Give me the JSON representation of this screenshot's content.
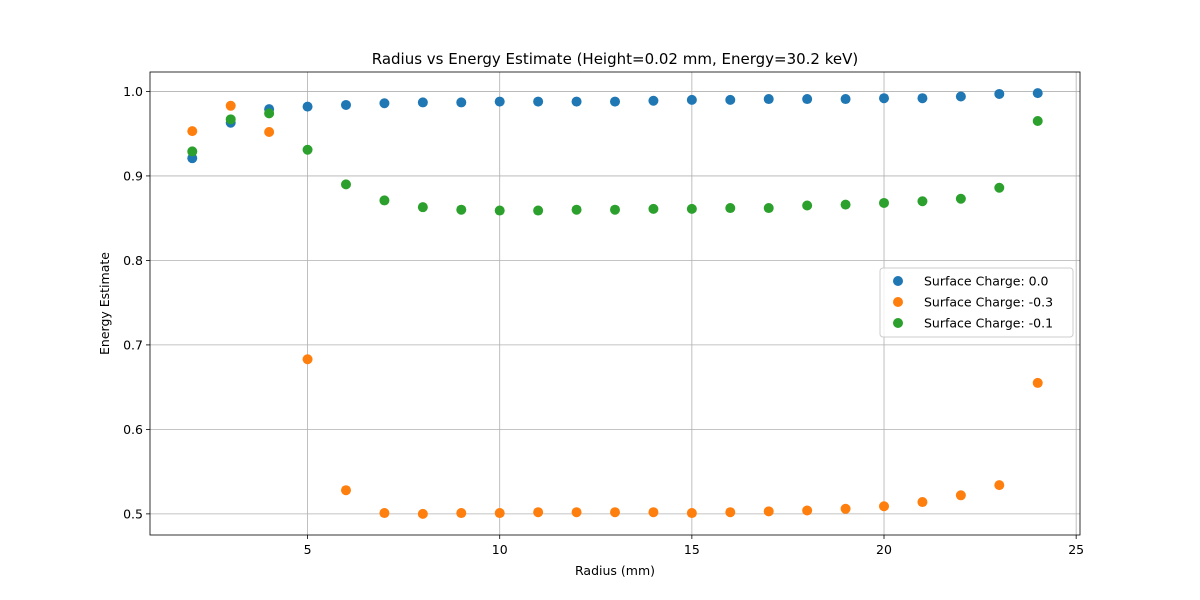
{
  "chart_data": {
    "type": "scatter",
    "title": "Radius vs Energy Estimate (Height=0.02 mm, Energy=30.2 keV)",
    "xlabel": "Radius (mm)",
    "ylabel": "Energy Estimate",
    "xlim": [
      0.9,
      25.1
    ],
    "ylim": [
      0.475,
      1.023
    ],
    "xticks": [
      5,
      10,
      15,
      20,
      25
    ],
    "yticks": [
      0.5,
      0.6,
      0.7,
      0.8,
      0.9,
      1.0
    ],
    "xtick_labels": [
      "5",
      "10",
      "15",
      "20",
      "25"
    ],
    "ytick_labels": [
      "0.5",
      "0.6",
      "0.7",
      "0.8",
      "0.9",
      "1.0"
    ],
    "grid": true,
    "legend_position": "center-right",
    "x": [
      2,
      3,
      4,
      5,
      6,
      7,
      8,
      9,
      10,
      11,
      12,
      13,
      14,
      15,
      16,
      17,
      18,
      19,
      20,
      21,
      22,
      23,
      24
    ],
    "series": [
      {
        "name": "Surface Charge: 0.0",
        "color": "#1f77b4",
        "values": [
          0.921,
          0.963,
          0.979,
          0.982,
          0.984,
          0.986,
          0.987,
          0.987,
          0.988,
          0.988,
          0.988,
          0.988,
          0.989,
          0.99,
          0.99,
          0.991,
          0.991,
          0.991,
          0.992,
          0.992,
          0.994,
          0.997,
          0.998
        ]
      },
      {
        "name": "Surface Charge: -0.3",
        "color": "#ff7f0e",
        "values": [
          0.953,
          0.983,
          0.952,
          0.683,
          0.528,
          0.501,
          0.5,
          0.501,
          0.501,
          0.502,
          0.502,
          0.502,
          0.502,
          0.501,
          0.502,
          0.503,
          0.504,
          0.506,
          0.509,
          0.514,
          0.522,
          0.534,
          0.655
        ]
      },
      {
        "name": "Surface Charge: -0.1",
        "color": "#2ca02c",
        "values": [
          0.929,
          0.967,
          0.974,
          0.931,
          0.89,
          0.871,
          0.863,
          0.86,
          0.859,
          0.859,
          0.86,
          0.86,
          0.861,
          0.861,
          0.862,
          0.862,
          0.865,
          0.866,
          0.868,
          0.87,
          0.873,
          0.886,
          0.965
        ]
      }
    ]
  }
}
